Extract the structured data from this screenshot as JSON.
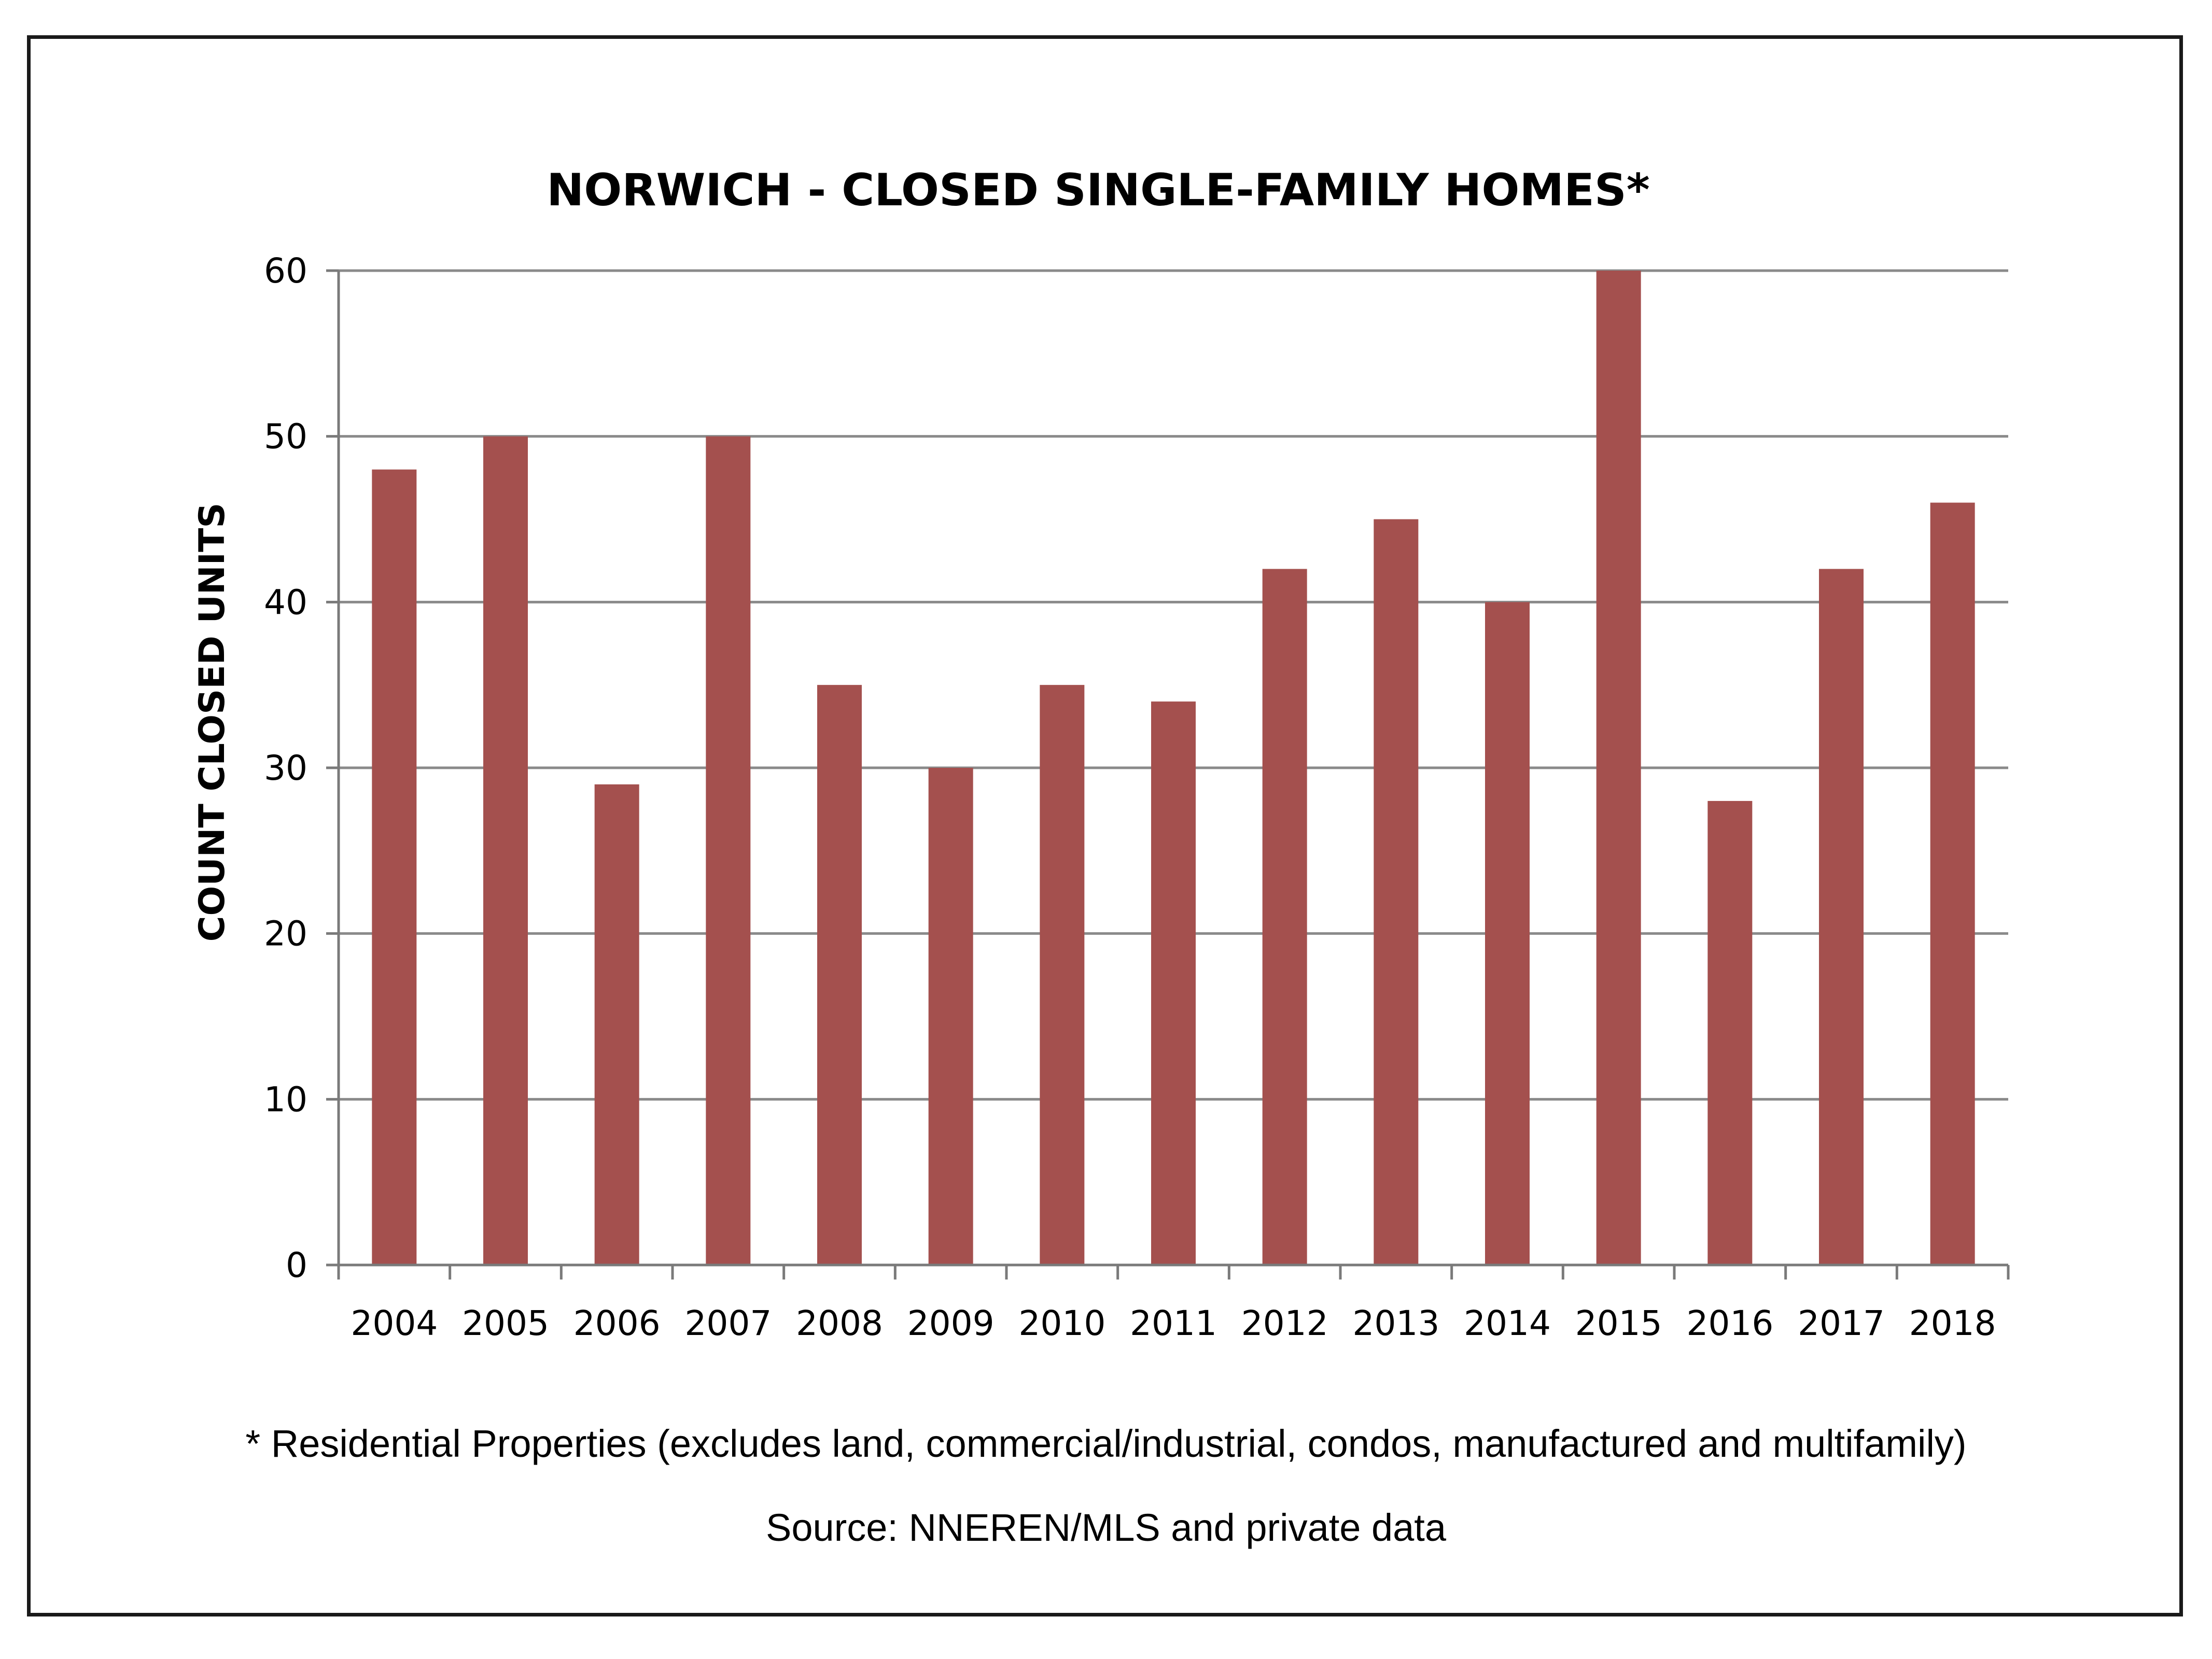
{
  "chart_data": {
    "type": "bar",
    "title": "NORWICH - CLOSED SINGLE-FAMILY HOMES*",
    "xlabel": "",
    "ylabel": "COUNT CLOSED UNITS",
    "categories": [
      "2004",
      "2005",
      "2006",
      "2007",
      "2008",
      "2009",
      "2010",
      "2011",
      "2012",
      "2013",
      "2014",
      "2015",
      "2016",
      "2017",
      "2018"
    ],
    "values": [
      48,
      50,
      29,
      50,
      35,
      30,
      35,
      34,
      42,
      45,
      40,
      60,
      28,
      42,
      46
    ],
    "ylim": [
      0,
      60
    ],
    "yticks": [
      0,
      10,
      20,
      30,
      40,
      50,
      60
    ],
    "grid": "horizontal",
    "legend": "none",
    "bar_color": "#a4504e",
    "footnotes": [
      "* Residential Properties (excludes land, commercial/industrial, condos, manufactured and multifamily)",
      "Source: NNEREN/MLS and private data"
    ]
  }
}
